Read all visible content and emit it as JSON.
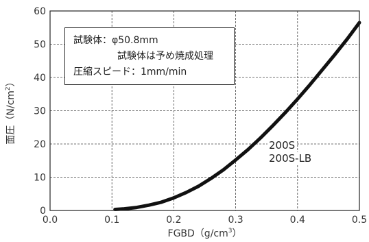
{
  "chart_data": {
    "type": "line",
    "xlabel": "FGBD（g/cm",
    "xlabel_sup": "3",
    "xlabel_close": "）",
    "ylabel": "面圧（N/cm",
    "ylabel_sup": "2",
    "ylabel_close": "）",
    "xlim": [
      0.0,
      0.5
    ],
    "ylim": [
      0,
      60
    ],
    "x_ticks": [
      "0.0",
      "0.1",
      "0.2",
      "0.3",
      "0.4",
      "0.5"
    ],
    "y_ticks": [
      "0",
      "10",
      "20",
      "30",
      "40",
      "50",
      "60"
    ],
    "grid": true,
    "grid_style": "dashed",
    "series": [
      {
        "name": "200S",
        "color": "#111111",
        "x": [
          0.105,
          0.12,
          0.14,
          0.16,
          0.18,
          0.2,
          0.22,
          0.24,
          0.26,
          0.28,
          0.3,
          0.32,
          0.34,
          0.36,
          0.38,
          0.4,
          0.42,
          0.44,
          0.46,
          0.48,
          0.5
        ],
        "y": [
          0.3,
          0.5,
          0.9,
          1.6,
          2.5,
          3.8,
          5.4,
          7.3,
          9.6,
          12.2,
          15.2,
          18.3,
          21.8,
          25.5,
          29.4,
          33.5,
          37.8,
          42.3,
          46.8,
          51.5,
          56.5
        ]
      },
      {
        "name": "200S-LB",
        "color": "#111111",
        "x": [
          0.105,
          0.12,
          0.14,
          0.16,
          0.18,
          0.2,
          0.22,
          0.24,
          0.26,
          0.28,
          0.3,
          0.32,
          0.34,
          0.36,
          0.38,
          0.4,
          0.42,
          0.44,
          0.46,
          0.48,
          0.5
        ],
        "y": [
          0.4,
          0.6,
          1.0,
          1.7,
          2.6,
          3.9,
          5.5,
          7.4,
          9.7,
          12.3,
          15.3,
          18.4,
          21.9,
          25.6,
          29.5,
          33.6,
          37.9,
          42.4,
          46.9,
          51.6,
          56.6
        ]
      }
    ],
    "annotations": [
      "試験体：φ50.8mm",
      "試験体は予め焼成処理",
      "圧縮スピード：1mm/min"
    ],
    "series_labels": [
      "200S",
      "200S-LB"
    ]
  }
}
